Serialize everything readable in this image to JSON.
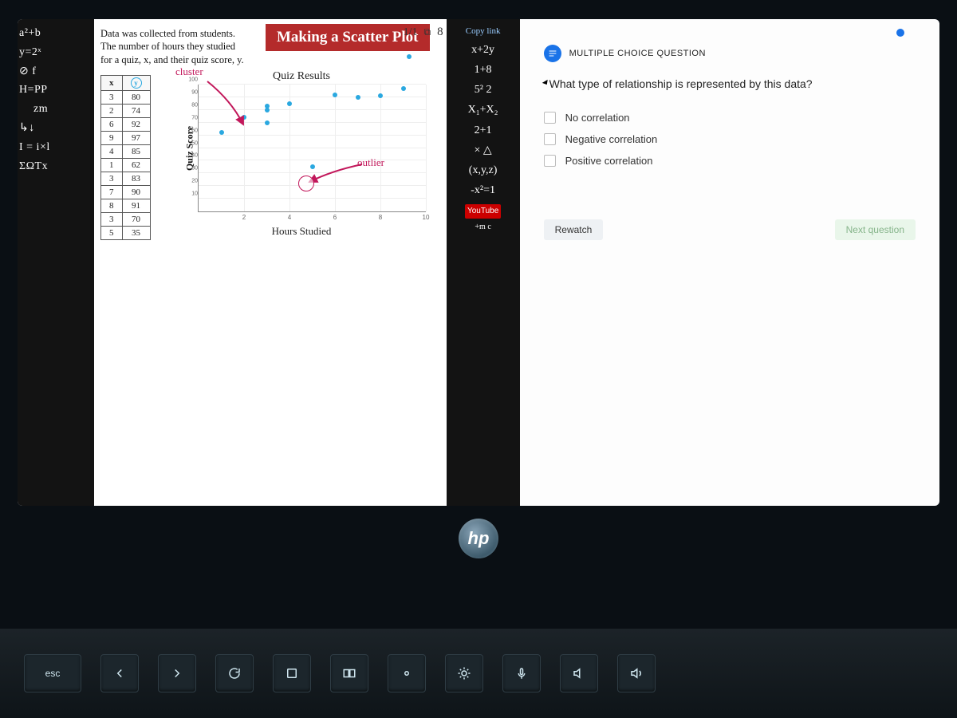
{
  "mcq": {
    "type_label": "MULTIPLE CHOICE QUESTION",
    "question": "What type of relationship is represented by this data?",
    "options": [
      "No correlation",
      "Negative correlation",
      "Positive correlation"
    ],
    "rewatch_label": "Rewatch",
    "next_label": "Next question"
  },
  "video": {
    "title": "Making a Scatter Plot",
    "share_ratio": "1/1",
    "share_icon_badge": "8",
    "copy_link_label": "Copy link",
    "description_line1": "Data was collected from students.",
    "description_line2": "The number of hours they studied",
    "description_line3": "for a quiz, x, and their quiz score, y.",
    "chalk_left": [
      "a²+b",
      "y=2ˣ",
      "⊘ f",
      "H=PP",
      "zm",
      "↳↓",
      "I = i×l",
      "ΣΩTx"
    ],
    "chalk_right": [
      "x+2y",
      "1+8",
      "5² 2",
      "X₁+X₂",
      "2+1",
      "× △",
      "(x,y,z)",
      "-x²=1",
      "YouTube",
      "+m c"
    ],
    "data_table": {
      "head": [
        "x",
        "y"
      ],
      "rows": [
        [
          3,
          80
        ],
        [
          2,
          74
        ],
        [
          6,
          92
        ],
        [
          9,
          97
        ],
        [
          4,
          85
        ],
        [
          1,
          62
        ],
        [
          3,
          83
        ],
        [
          7,
          90
        ],
        [
          8,
          91
        ],
        [
          3,
          70
        ],
        [
          5,
          35
        ]
      ]
    },
    "scatter": {
      "type": "scatter",
      "title": "Quiz Results",
      "xlabel": "Hours Studied",
      "ylabel": "Quiz Score",
      "xlim": [
        0,
        10
      ],
      "ylim": [
        0,
        100
      ],
      "xtick_step": 2,
      "ytick_step": 10,
      "point_color": "#2aa8e0",
      "grid_color": "#eeeeee",
      "axis_color": "#888888",
      "background_color": "#ffffff",
      "points": [
        [
          3,
          80
        ],
        [
          2,
          74
        ],
        [
          6,
          92
        ],
        [
          9,
          97
        ],
        [
          4,
          85
        ],
        [
          1,
          62
        ],
        [
          3,
          83
        ],
        [
          7,
          90
        ],
        [
          8,
          91
        ],
        [
          3,
          70
        ],
        [
          5,
          35
        ]
      ],
      "annotations": {
        "cluster_label": "cluster",
        "cluster_color": "#c2185b",
        "outlier_label": "outlier",
        "outlier_color": "#c2185b"
      }
    }
  },
  "hardware": {
    "logo": "hp",
    "keys": {
      "esc": "esc"
    }
  }
}
